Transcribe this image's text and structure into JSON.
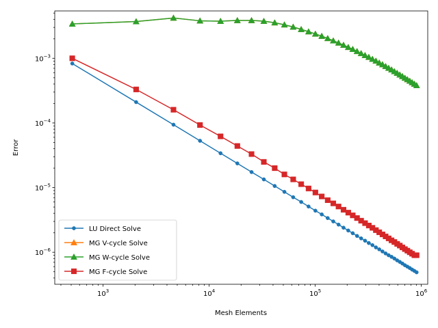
{
  "chart_data": {
    "type": "line",
    "xlabel": "Mesh Elements",
    "ylabel": "Error",
    "xscale": "log",
    "yscale": "log",
    "xlim": [
      350,
      1150000
    ],
    "ylim": [
      3.2e-07,
      0.0054
    ],
    "grid": false,
    "legend_placement": "lower-left",
    "x_ticks": [
      {
        "value": 1000,
        "label": "10",
        "exp": "3"
      },
      {
        "value": 10000,
        "label": "10",
        "exp": "4"
      },
      {
        "value": 100000,
        "label": "10",
        "exp": "5"
      },
      {
        "value": 1000000,
        "label": "10",
        "exp": "6"
      }
    ],
    "y_ticks": [
      {
        "value": 1e-06,
        "label": "10",
        "exp": "−6"
      },
      {
        "value": 1e-05,
        "label": "10",
        "exp": "−5"
      },
      {
        "value": 0.0001,
        "label": "10",
        "exp": "−4"
      },
      {
        "value": 0.001,
        "label": "10",
        "exp": "−3"
      }
    ],
    "x": [
      512,
      2048,
      4608,
      8192,
      12800,
      18432,
      25088,
      32768,
      41472,
      51200,
      61952,
      73728,
      86528,
      100352,
      115200,
      131072,
      147968,
      165888,
      184832,
      204800,
      225792,
      247808,
      270848,
      294912,
      320000,
      346112,
      373248,
      401408,
      430592,
      460800,
      492032,
      524288,
      557568,
      591872,
      627200,
      663552,
      700928,
      739328,
      778752,
      819200,
      860672,
      903168
    ],
    "series": [
      {
        "name": "LU Direct Solve",
        "color": "#1f77b4",
        "marker": "circle",
        "values": [
          0.00083,
          0.00021,
          9.4e-05,
          5.3e-05,
          3.4e-05,
          2.37e-05,
          1.74e-05,
          1.34e-05,
          1.06e-05,
          8.6e-06,
          7.1e-06,
          6e-06,
          5.1e-06,
          4.4e-06,
          3.85e-06,
          3.38e-06,
          3e-06,
          2.68e-06,
          2.4e-06,
          2.17e-06,
          1.97e-06,
          1.79e-06,
          1.64e-06,
          1.51e-06,
          1.39e-06,
          1.29e-06,
          1.19e-06,
          1.11e-06,
          1.03e-06,
          9.6e-07,
          9e-07,
          8.5e-07,
          8e-07,
          7.5e-07,
          7.1e-07,
          6.7e-07,
          6.3e-07,
          6e-07,
          5.7e-07,
          5.4e-07,
          5.15e-07,
          4.9e-07
        ]
      },
      {
        "name": "MG V-cycle Solve",
        "color": "#ff7f0e",
        "marker": "triangle",
        "values": [
          0.0034,
          0.0037,
          0.0042,
          0.0038,
          0.00375,
          0.00385,
          0.00385,
          0.00375,
          0.00355,
          0.0033,
          0.00305,
          0.0028,
          0.00258,
          0.00238,
          0.0022,
          0.00203,
          0.00187,
          0.00173,
          0.0016,
          0.00148,
          0.00138,
          0.00128,
          0.00119,
          0.00111,
          0.00104,
          0.00097,
          0.00091,
          0.00085,
          0.0008,
          0.00075,
          0.000705,
          0.000665,
          0.000625,
          0.00059,
          0.000555,
          0.000525,
          0.000495,
          0.00047,
          0.000445,
          0.000422,
          0.0004,
          0.00038
        ]
      },
      {
        "name": "MG W-cycle Solve",
        "color": "#2ca02c",
        "marker": "triangle",
        "values": [
          0.0034,
          0.0037,
          0.0042,
          0.0038,
          0.00375,
          0.00385,
          0.00385,
          0.00375,
          0.00355,
          0.0033,
          0.00305,
          0.0028,
          0.00258,
          0.00238,
          0.0022,
          0.00203,
          0.00187,
          0.00173,
          0.0016,
          0.00148,
          0.00138,
          0.00128,
          0.00119,
          0.00111,
          0.00104,
          0.00097,
          0.00091,
          0.00085,
          0.0008,
          0.00075,
          0.000705,
          0.000665,
          0.000625,
          0.00059,
          0.000555,
          0.000525,
          0.000495,
          0.00047,
          0.000445,
          0.000422,
          0.0004,
          0.00038
        ]
      },
      {
        "name": "MG F-cycle Solve",
        "color": "#d62728",
        "marker": "square",
        "values": [
          0.001,
          0.00033,
          0.00016,
          9.3e-05,
          6.2e-05,
          4.4e-05,
          3.3e-05,
          2.5e-05,
          2e-05,
          1.6e-05,
          1.34e-05,
          1.13e-05,
          9.7e-06,
          8.4e-06,
          7.3e-06,
          6.4e-06,
          5.7e-06,
          5.1e-06,
          4.55e-06,
          4.1e-06,
          3.72e-06,
          3.38e-06,
          3.08e-06,
          2.82e-06,
          2.59e-06,
          2.39e-06,
          2.2e-06,
          2.04e-06,
          1.89e-06,
          1.76e-06,
          1.64e-06,
          1.53e-06,
          1.44e-06,
          1.35e-06,
          1.27e-06,
          1.19e-06,
          1.12e-06,
          1.06e-06,
          1e-06,
          9.5e-07,
          9e-07,
          9e-07
        ]
      }
    ]
  }
}
